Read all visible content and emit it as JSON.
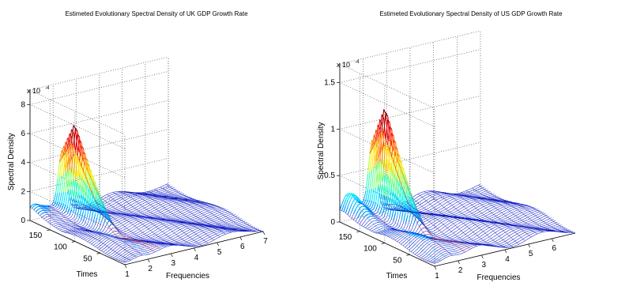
{
  "chart_data": [
    {
      "type": "surface",
      "title": "Estimeted Evolutionary Spectral Density of UK GDP Growth Rate",
      "zlabel": "Spectral Density",
      "xlabel": "Frequencies",
      "ylabel": "Times",
      "z_scale_label": "x 10",
      "z_scale_exponent": "-4",
      "x_ticks": [
        "1",
        "2",
        "3",
        "4",
        "5",
        "6",
        "7"
      ],
      "x_range": [
        1,
        7
      ],
      "y_ticks": [
        "50",
        "100",
        "150"
      ],
      "y_range": [
        0,
        190
      ],
      "z_ticks": [
        "0",
        "2",
        "4",
        "6",
        "8"
      ],
      "z_range": [
        0,
        9
      ],
      "grid": true,
      "colormap": "jet",
      "peak": {
        "frequency": 2.4,
        "time": 165,
        "value": 6.1
      },
      "secondary_peak": {
        "frequency": 1.1,
        "time": 185,
        "value": 0.8
      },
      "baseline_level": 0.6
    },
    {
      "type": "surface",
      "title": "Estimeted Evolutionary Spectral Density of US GDP Growth Rate",
      "zlabel": "Spectral Density",
      "xlabel": "Frequencies",
      "ylabel": "Times",
      "z_scale_label": "x 10",
      "z_scale_exponent": "-4",
      "x_ticks": [
        "1",
        "2",
        "3",
        "4",
        "5",
        "6"
      ],
      "x_range": [
        1,
        7
      ],
      "y_ticks": [
        "50",
        "100",
        "150"
      ],
      "y_range": [
        0,
        190
      ],
      "z_ticks": [
        "0",
        "0.5",
        "1",
        "1.5"
      ],
      "z_range": [
        0,
        1.7
      ],
      "grid": true,
      "colormap": "jet",
      "peak": {
        "frequency": 2.4,
        "time": 165,
        "value": 1.12
      },
      "secondary_peak": {
        "frequency": 1.3,
        "time": 180,
        "value": 0.22
      },
      "baseline_level": 0.12
    }
  ]
}
